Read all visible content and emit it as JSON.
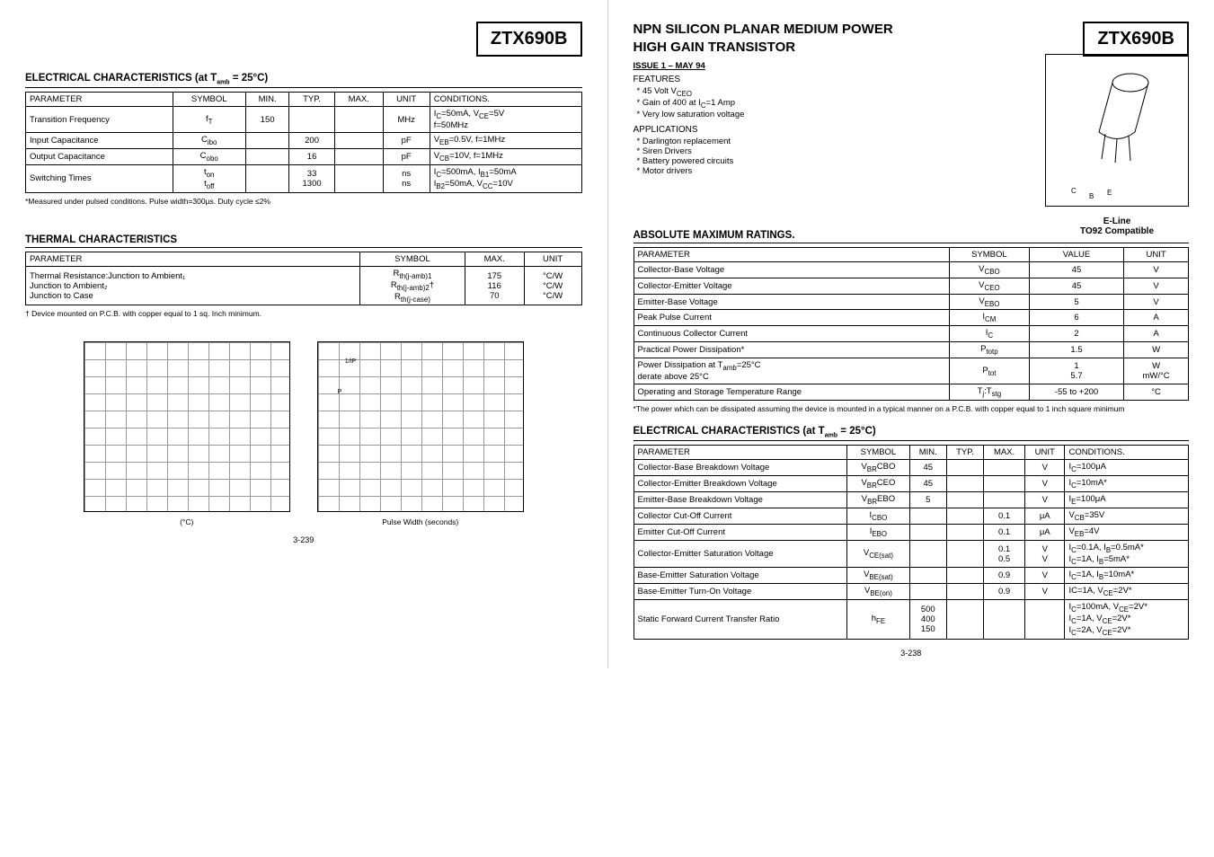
{
  "part": "ZTX690B",
  "left": {
    "elec_title": "ELECTRICAL CHARACTERISTICS (at T",
    "elec_title_sub": "amb",
    "elec_title_tail": " = 25°C)",
    "elec_cols": [
      "PARAMETER",
      "SYMBOL",
      "MIN.",
      "TYP.",
      "MAX.",
      "UNIT",
      "CONDITIONS."
    ],
    "elec_rows": [
      [
        "Transition Frequency",
        "f_T",
        "150",
        "",
        "",
        "MHz",
        "I_C=50mA, V_CE=5V\nf=50MHz"
      ],
      [
        "Input Capacitance",
        "C_ibo",
        "",
        "200",
        "",
        "pF",
        "V_EB=0.5V, f=1MHz"
      ],
      [
        "Output Capacitance",
        "C_obo",
        "",
        "16",
        "",
        "pF",
        "V_CB=10V,  f=1MHz"
      ],
      [
        "Switching Times",
        "t_on\nt_off",
        "",
        "33\n1300",
        "",
        "ns\nns",
        "I_C=500mA, I_B1=50mA\nI_B2=50mA, V_CC=10V"
      ]
    ],
    "elec_foot": "*Measured under pulsed conditions. Pulse width=300µs. Duty cycle ≤2%",
    "therm_title": "THERMAL CHARACTERISTICS",
    "therm_cols": [
      "PARAMETER",
      "SYMBOL",
      "MAX.",
      "UNIT"
    ],
    "therm_rows": [
      [
        "Thermal Resistance:Junction to Ambient₁\nJunction to Ambient₂\nJunction to Case",
        "R_th(j-amb)1\nR_th(j-amb)2†\nR_th(j-case)",
        "175\n116\n70",
        "°C/W\n°C/W\n°C/W"
      ]
    ],
    "therm_foot": "† Device mounted on P.C.B. with copper equal to 1 sq. Inch minimum.",
    "plot1_caption": "(°C)",
    "plot2_caption": "Pulse Width (seconds)",
    "pagenum": "3-239"
  },
  "right": {
    "title1": "NPN SILICON PLANAR MEDIUM POWER",
    "title2": "HIGH GAIN TRANSISTOR",
    "issue": "ISSUE 1 – MAY 94",
    "features_label": "FEATURES",
    "features": [
      "45 Volt V_CEO",
      "Gain of 400 at I_C=1 Amp",
      "Very low saturation voltage"
    ],
    "apps_label": "APPLICATIONS",
    "apps": [
      "Darlington replacement",
      "Siren Drivers",
      "Battery powered circuits",
      "Motor drivers"
    ],
    "eline_cap1": "E-Line",
    "eline_cap2": "TO92 Compatible",
    "pins": {
      "c": "C",
      "b": "B",
      "e": "E"
    },
    "abs_title": "ABSOLUTE MAXIMUM RATINGS.",
    "abs_cols": [
      "PARAMETER",
      "SYMBOL",
      "VALUE",
      "UNIT"
    ],
    "abs_rows": [
      [
        "Collector-Base Voltage",
        "V_CBO",
        "45",
        "V"
      ],
      [
        "Collector-Emitter Voltage",
        "V_CEO",
        "45",
        "V"
      ],
      [
        "Emitter-Base Voltage",
        "V_EBO",
        "5",
        "V"
      ],
      [
        "Peak Pulse Current",
        "I_CM",
        "6",
        "A"
      ],
      [
        "Continuous Collector Current",
        "I_C",
        "2",
        "A"
      ],
      [
        "Practical Power Dissipation*",
        "P_totp",
        "1.5",
        "W"
      ],
      [
        "Power Dissipation   at T_amb=25°C\n                     derate above 25°C",
        "P_tot",
        "1\n5.7",
        "W\nmW/°C"
      ],
      [
        "Operating and Storage Temperature Range",
        "T_j:T_stg",
        "-55 to +200",
        "°C"
      ]
    ],
    "abs_foot": "*The power which can be dissipated assuming the device is mounted in a typical manner on a P.C.B. with copper equal to 1 inch square minimum",
    "elec_title": "ELECTRICAL CHARACTERISTICS (at T",
    "elec_title_sub": "amb",
    "elec_title_tail": " = 25°C)",
    "elec_cols": [
      "PARAMETER",
      "SYMBOL",
      "MIN.",
      "TYP.",
      "MAX.",
      "UNIT",
      "CONDITIONS."
    ],
    "elec_rows": [
      [
        "Collector-Base Breakdown Voltage",
        "V_(BR)CBO",
        "45",
        "",
        "",
        "V",
        "I_C=100μA"
      ],
      [
        "Collector-Emitter Breakdown Voltage",
        "V_(BR)CEO",
        "45",
        "",
        "",
        "V",
        "I_C=10mA*"
      ],
      [
        "Emitter-Base Breakdown Voltage",
        "V_(BR)EBO",
        "5",
        "",
        "",
        "V",
        "I_E=100μA"
      ],
      [
        "Collector Cut-Off Current",
        "I_CBO",
        "",
        "",
        "0.1",
        "μA",
        "V_CB=35V"
      ],
      [
        "Emitter Cut-Off Current",
        "I_EBO",
        "",
        "",
        "0.1",
        "μA",
        "V_EB=4V"
      ],
      [
        "Collector-Emitter Saturation Voltage",
        "V_CE(sat)",
        "",
        "",
        "0.1\n0.5",
        "V\nV",
        "I_C=0.1A, I_B=0.5mA*\nI_C=1A, I_B=5mA*"
      ],
      [
        "Base-Emitter Saturation Voltage",
        "V_BE(sat)",
        "",
        "",
        "0.9",
        "V",
        "I_C=1A, I_B=10mA*"
      ],
      [
        "Base-Emitter Turn-On Voltage",
        "V_BE(on)",
        "",
        "",
        "0.9",
        "V",
        "IC=1A, V_CE=2V*"
      ],
      [
        "Static Forward Current Transfer Ratio",
        "h_FE",
        "500\n400\n150",
        "",
        "",
        "",
        "I_C=100mA, V_CE=2V*\nI_C=1A, V_CE=2V*\nI_C=2A, V_CE=2V*"
      ]
    ],
    "pagenum": "3-238"
  }
}
